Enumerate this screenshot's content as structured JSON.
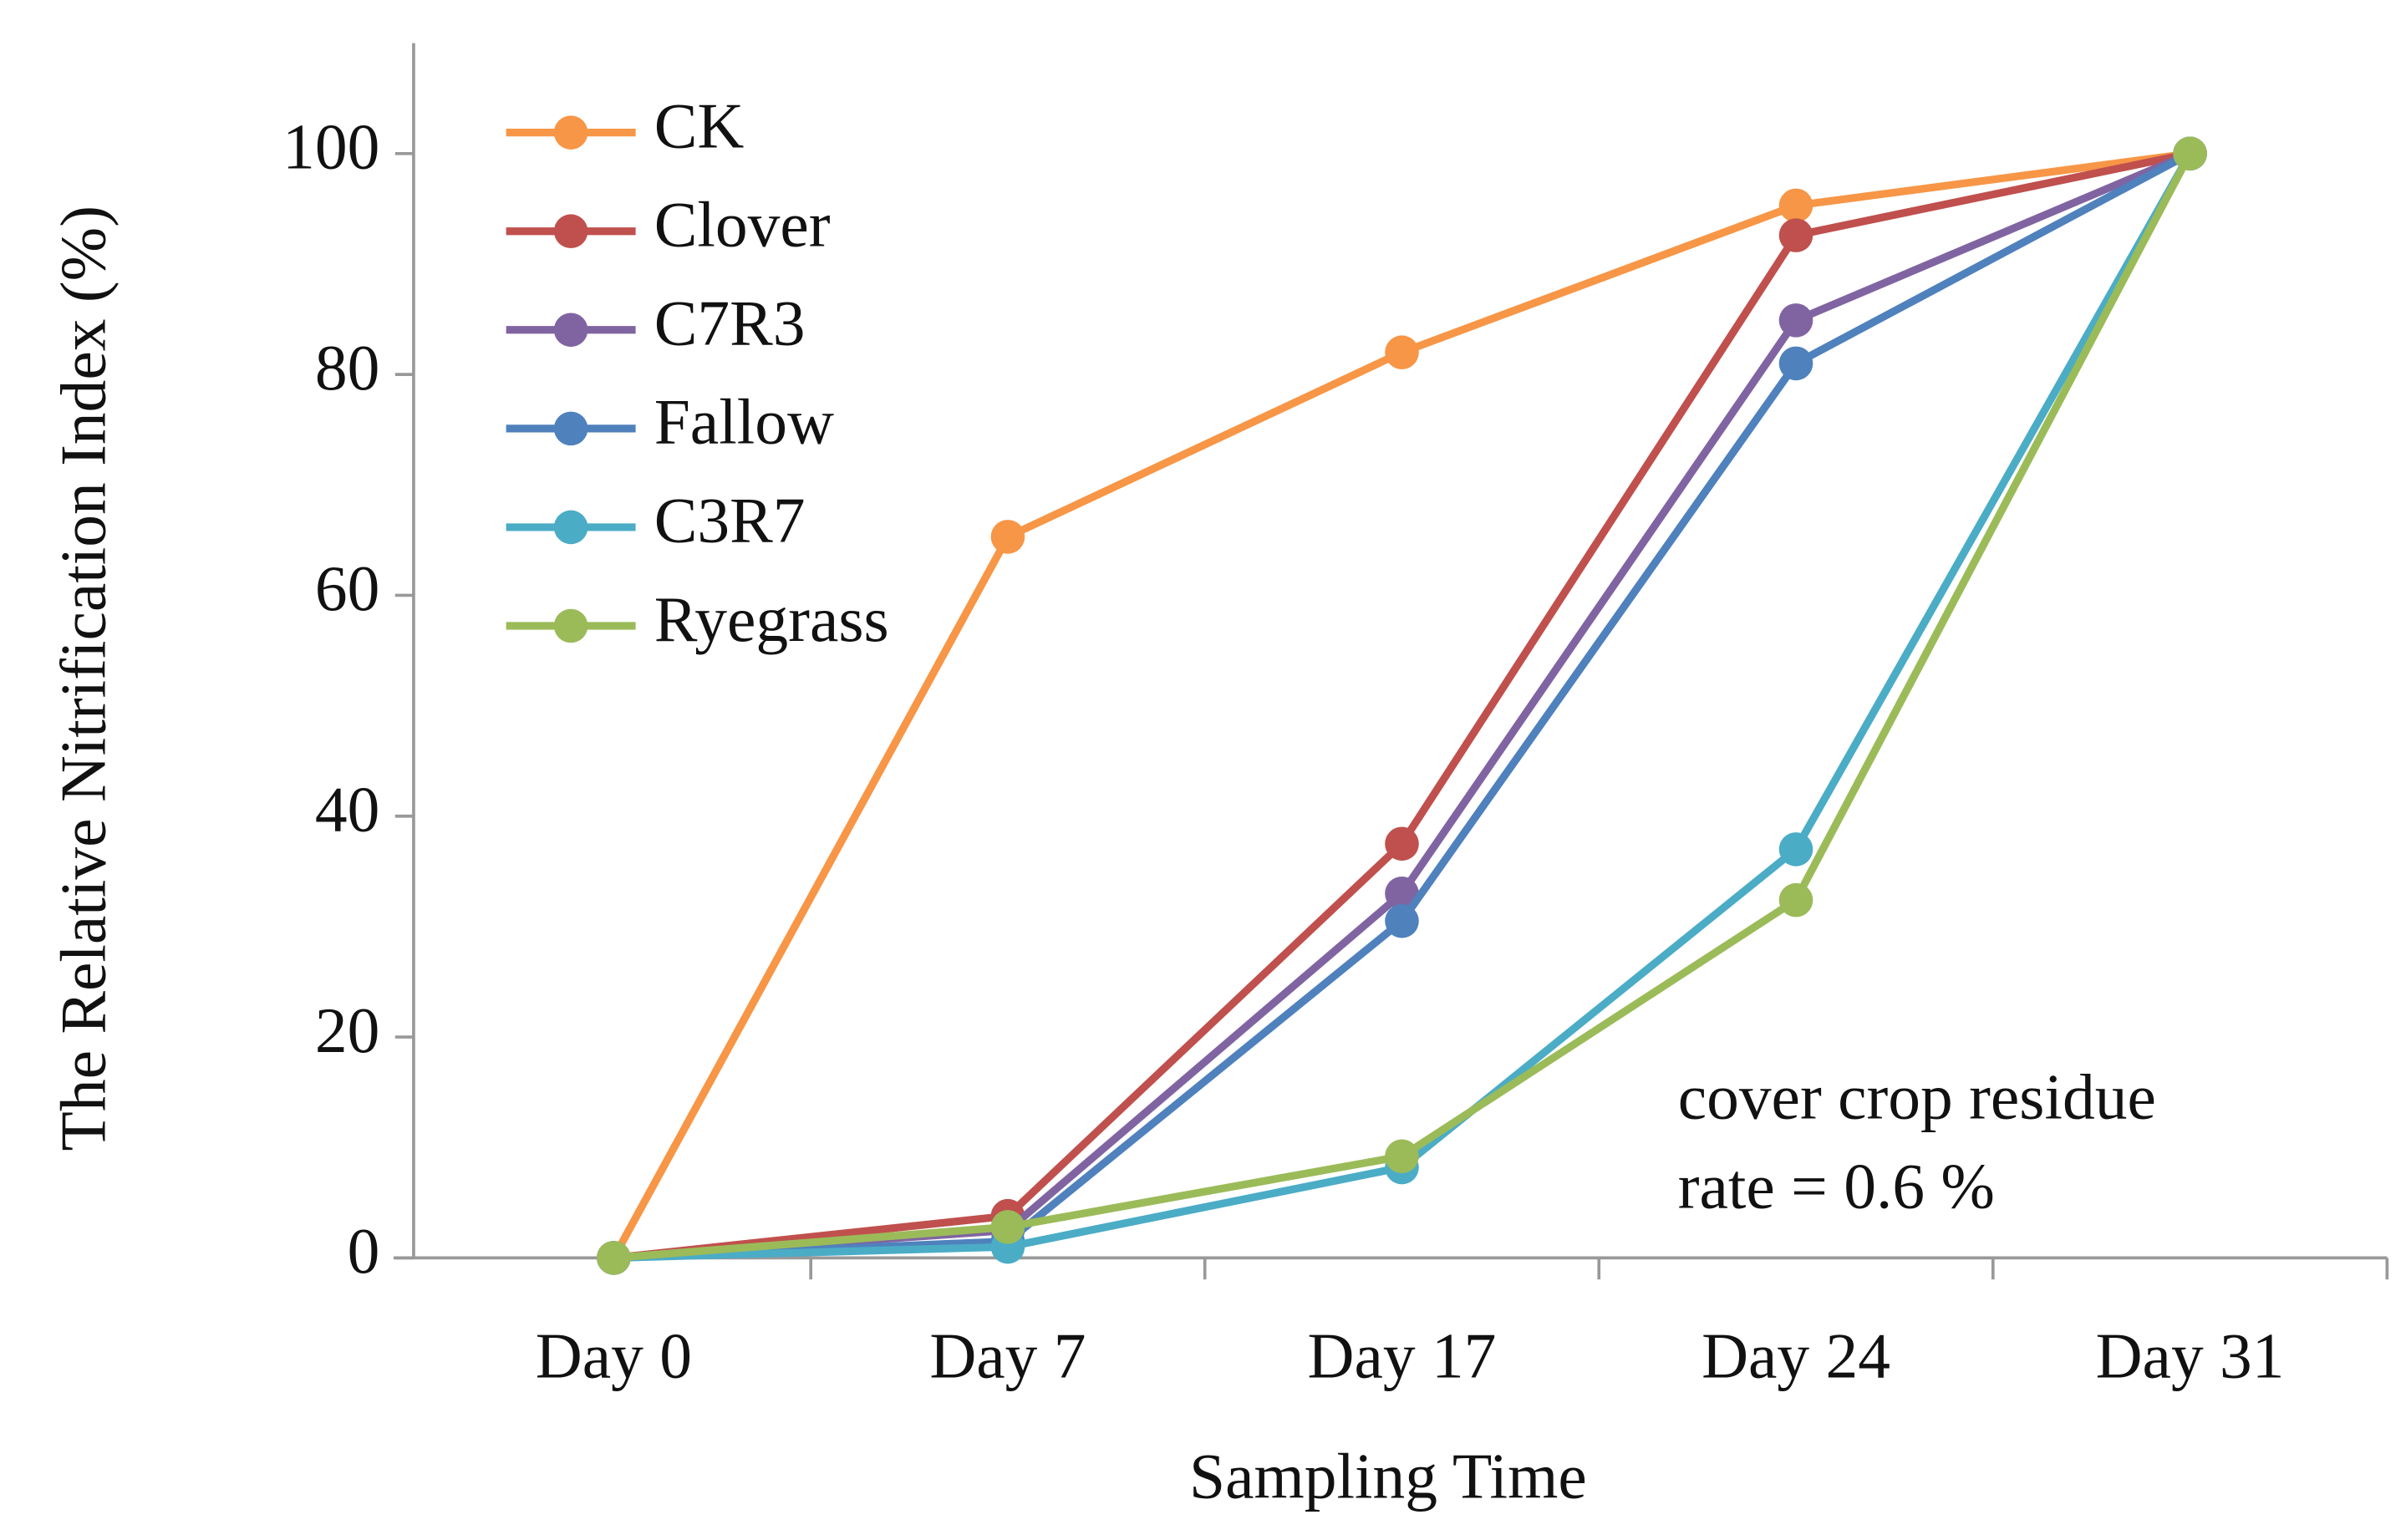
{
  "chart_data": {
    "type": "line",
    "x_label": "Sampling Time",
    "y_label": "The Relative Nitrification Index (%)",
    "categories": [
      "Day 0",
      "Day 7",
      "Day 17",
      "Day 24",
      "Day 31"
    ],
    "series": [
      {
        "name": "CK",
        "color": "#f79646",
        "values": [
          0,
          65.3,
          82,
          95.3,
          100
        ]
      },
      {
        "name": "Clover",
        "color": "#c0504d",
        "values": [
          0,
          3.8,
          37.5,
          92.6,
          100
        ]
      },
      {
        "name": "C7R3",
        "color": "#8064a2",
        "values": [
          0,
          2.5,
          33,
          84.9,
          100
        ]
      },
      {
        "name": "Fallow",
        "color": "#4f81bd",
        "values": [
          0,
          1.5,
          30.5,
          81,
          100
        ]
      },
      {
        "name": "C3R7",
        "color": "#4bacc6",
        "values": [
          0,
          1,
          8.2,
          37,
          100
        ]
      },
      {
        "name": "Ryegrass",
        "color": "#9bbb59",
        "values": [
          0,
          2.8,
          9.2,
          32.4,
          100
        ]
      }
    ],
    "ylim": [
      0,
      110
    ],
    "yticks": [
      0,
      20,
      40,
      60,
      80,
      100
    ],
    "legend": "upper-left",
    "annotations": [
      "cover crop residue",
      "rate = 0.6 %"
    ]
  }
}
